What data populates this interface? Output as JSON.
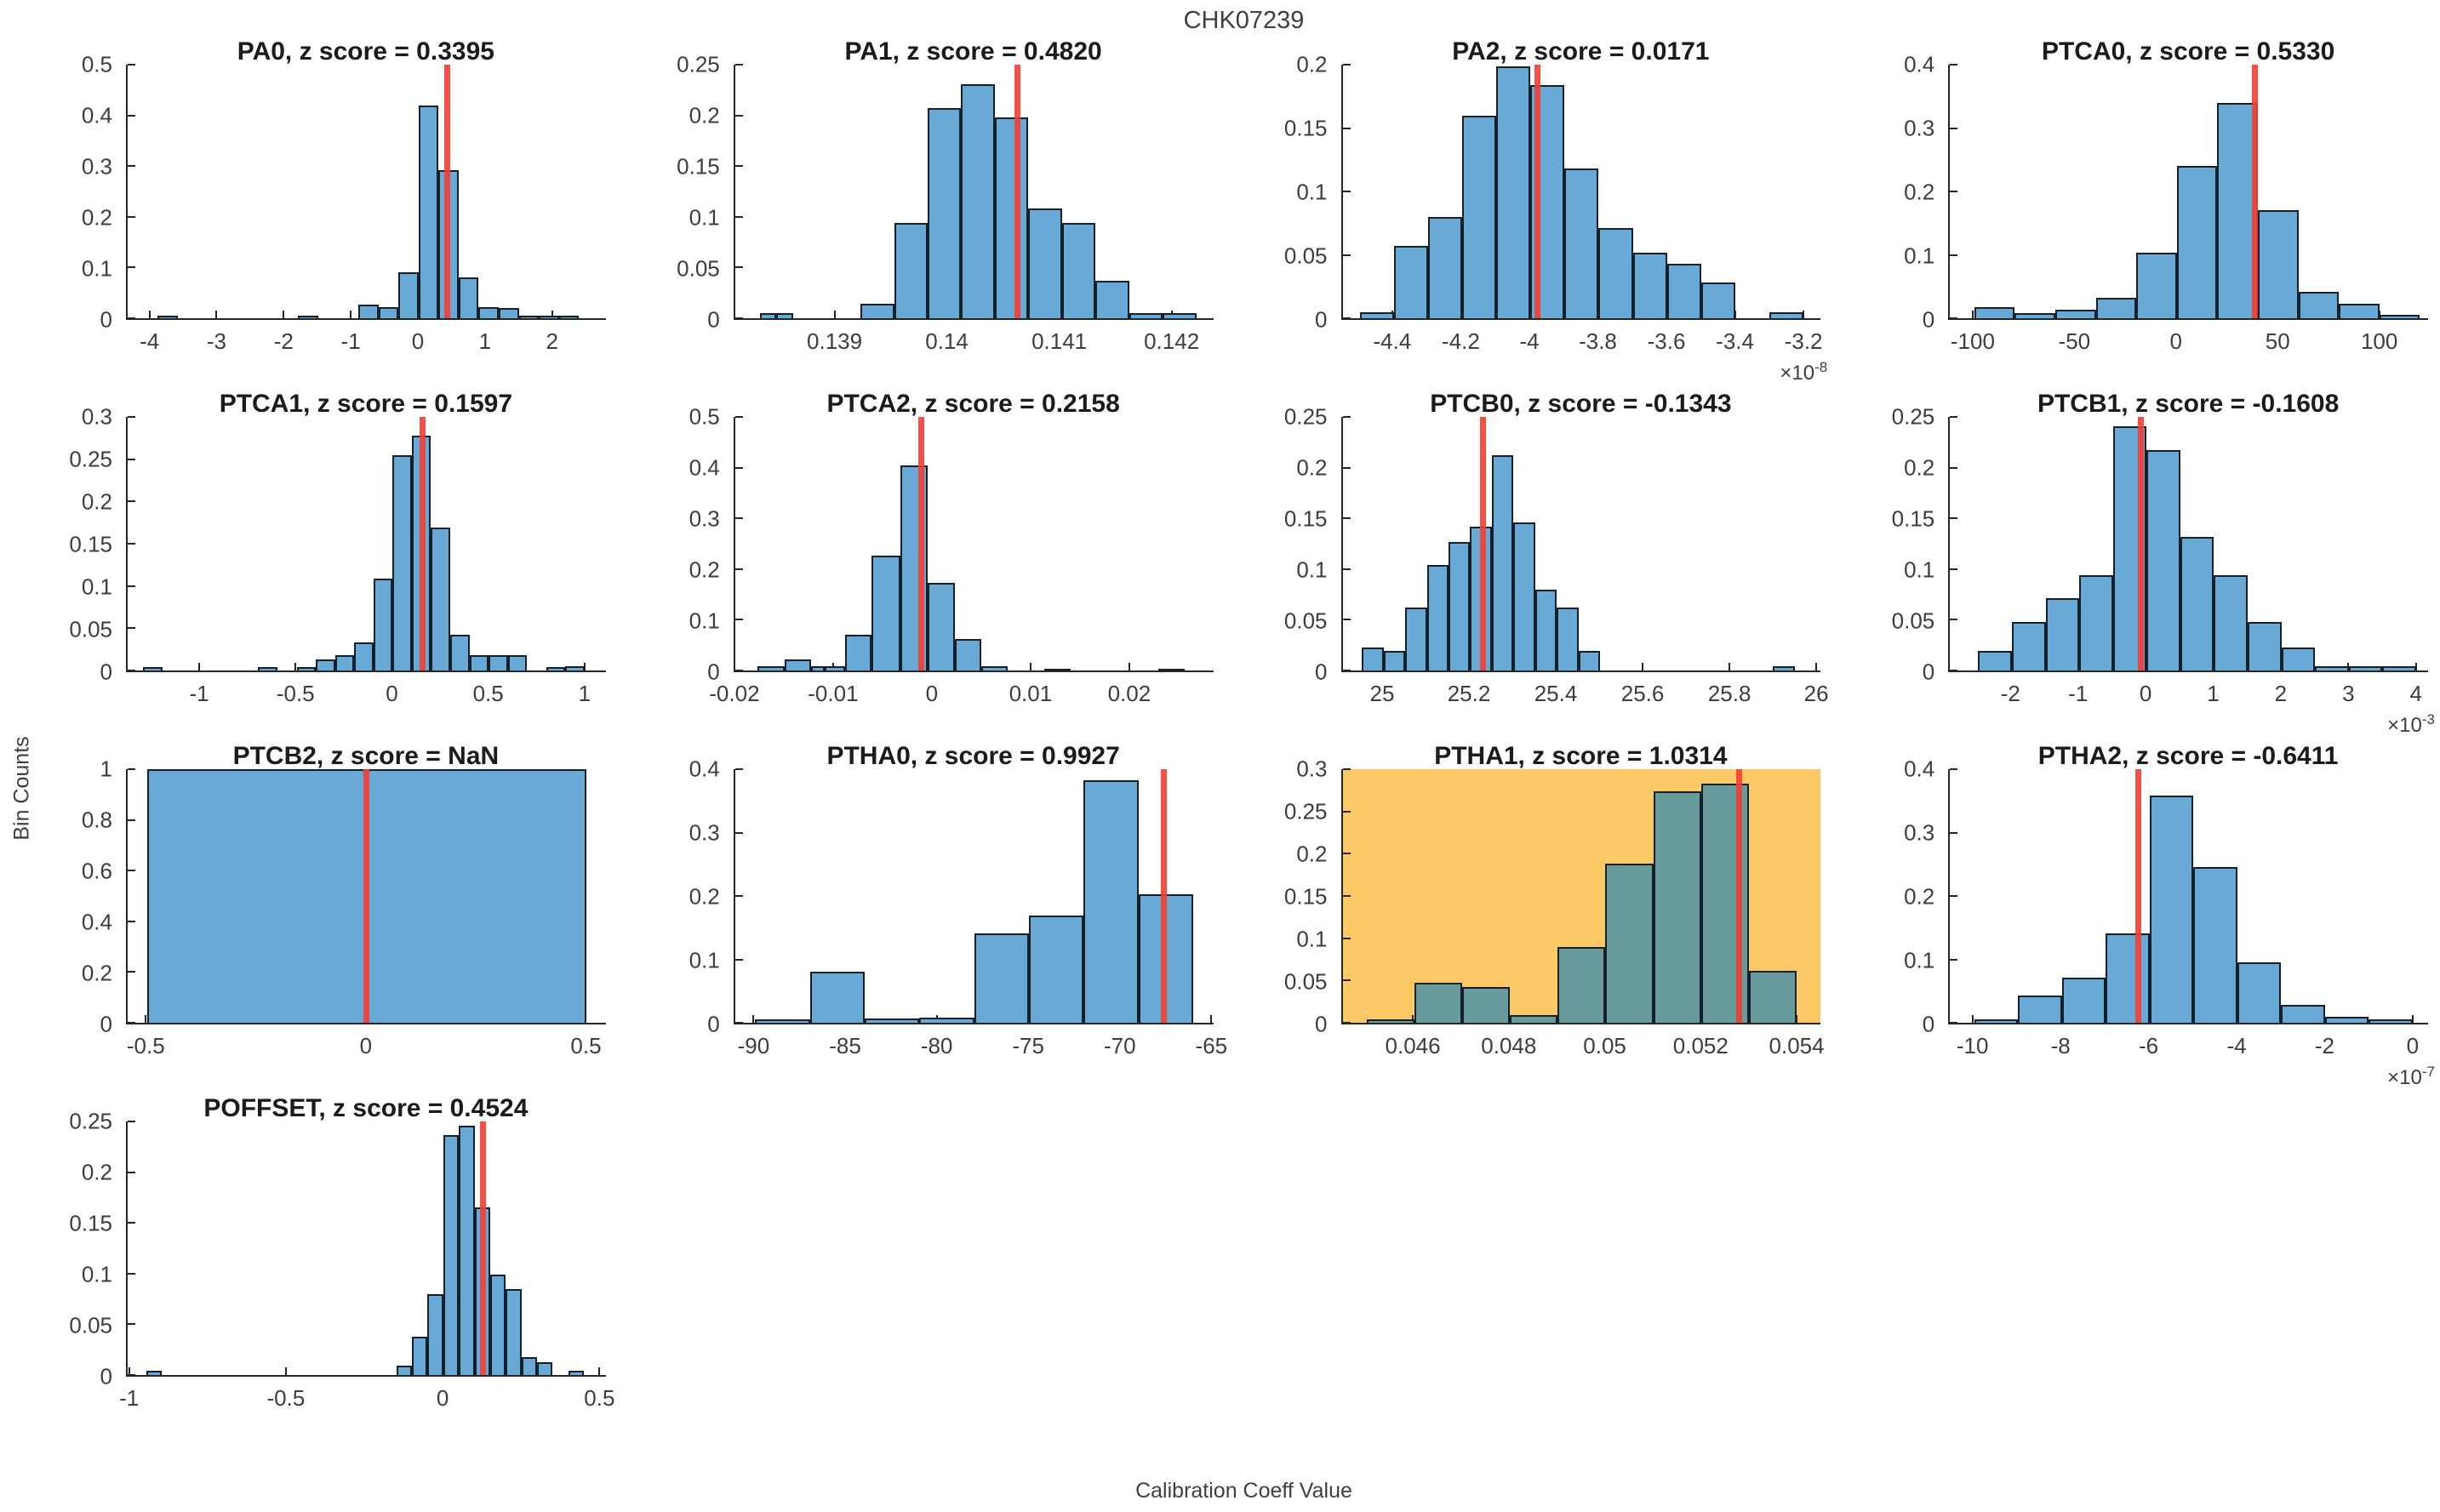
{
  "figure_title": "CHK07239",
  "ylabel": "Bin Counts",
  "xlabel": "Calibration Coeff Value",
  "exponent_prefix": "×10",
  "colors": {
    "bar": "#68A9D6",
    "bar_edge": "#16202a",
    "red_line": "#F23E34",
    "highlight_bg": "#FDC967",
    "bar_on_highlight": "#689B9C",
    "axis": "#262626",
    "tick_text": "#3d3d3d",
    "title_text": "#1b1b1b",
    "figure_text": "#3f3f3f"
  },
  "chart_data": [
    {
      "type": "bar",
      "param": "PA0",
      "z_score": "0.3395",
      "title": "PA0, z score = 0.3395",
      "xlim": [
        -4.35,
        2.8
      ],
      "ylim": [
        0,
        0.5
      ],
      "xticks": [
        -4,
        -3,
        -2,
        -1,
        0,
        1,
        2
      ],
      "yticks": [
        0,
        0.1,
        0.2,
        0.3,
        0.4,
        0.5
      ],
      "x_exponent": null,
      "highlighted": false,
      "red_line_x": 0.43,
      "bars": [
        [
          -3.9,
          -3.6,
          0.005
        ],
        [
          -1.8,
          -1.5,
          0.005
        ],
        [
          -0.9,
          -0.6,
          0.027
        ],
        [
          -0.6,
          -0.3,
          0.022
        ],
        [
          -0.3,
          0,
          0.09
        ],
        [
          0,
          0.3,
          0.42
        ],
        [
          0.3,
          0.6,
          0.292
        ],
        [
          0.6,
          0.9,
          0.08
        ],
        [
          0.9,
          1.2,
          0.022
        ],
        [
          1.2,
          1.5,
          0.02
        ],
        [
          1.5,
          1.8,
          0.005
        ],
        [
          1.8,
          2.1,
          0.005
        ],
        [
          2.1,
          2.4,
          0.005
        ]
      ]
    },
    {
      "type": "bar",
      "param": "PA1",
      "z_score": "0.4820",
      "title": "PA1, z score = 0.4820",
      "xlim": [
        0.1381,
        0.14237
      ],
      "ylim": [
        0,
        0.25
      ],
      "xticks": [
        0.139,
        0.14,
        0.141,
        0.142
      ],
      "yticks": [
        0,
        0.05,
        0.1,
        0.15,
        0.2,
        0.25
      ],
      "x_exponent": null,
      "highlighted": false,
      "red_line_x": 0.14062,
      "bars": [
        [
          0.13832,
          0.13847,
          0.005
        ],
        [
          0.13847,
          0.13862,
          0.005
        ],
        [
          0.13922,
          0.13952,
          0.014
        ],
        [
          0.13952,
          0.13982,
          0.094
        ],
        [
          0.13982,
          0.14012,
          0.207
        ],
        [
          0.14012,
          0.14042,
          0.231
        ],
        [
          0.14042,
          0.14072,
          0.198
        ],
        [
          0.14072,
          0.14102,
          0.108
        ],
        [
          0.14102,
          0.14132,
          0.094
        ],
        [
          0.14132,
          0.14162,
          0.037
        ],
        [
          0.14162,
          0.14192,
          0.005
        ],
        [
          0.14192,
          0.14222,
          0.005
        ]
      ]
    },
    {
      "type": "bar",
      "param": "PA2",
      "z_score": "0.0171",
      "title": "PA2, z score = 0.0171",
      "xlim": [
        -4.55,
        -3.15
      ],
      "ylim": [
        0,
        0.2
      ],
      "xticks": [
        -4.4,
        -4.2,
        -4,
        -3.8,
        -3.6,
        -3.4,
        -3.2
      ],
      "yticks": [
        0,
        0.05,
        0.1,
        0.15,
        0.2
      ],
      "x_exponent": "-8",
      "highlighted": false,
      "red_line_x": -3.98,
      "bars": [
        [
          -4.5,
          -4.4,
          0.005
        ],
        [
          -4.4,
          -4.3,
          0.057
        ],
        [
          -4.3,
          -4.2,
          0.08
        ],
        [
          -4.2,
          -4.1,
          0.16
        ],
        [
          -4.1,
          -4.0,
          0.199
        ],
        [
          -4.0,
          -3.9,
          0.184
        ],
        [
          -3.9,
          -3.8,
          0.118
        ],
        [
          -3.8,
          -3.7,
          0.071
        ],
        [
          -3.7,
          -3.6,
          0.052
        ],
        [
          -3.6,
          -3.5,
          0.043
        ],
        [
          -3.5,
          -3.4,
          0.028
        ],
        [
          -3.3,
          -3.2,
          0.005
        ]
      ]
    },
    {
      "type": "bar",
      "param": "PTCA0",
      "z_score": "0.5330",
      "title": "PTCA0, z score = 0.5330",
      "xlim": [
        -112,
        124
      ],
      "ylim": [
        0,
        0.4
      ],
      "xticks": [
        -100,
        -50,
        0,
        50,
        100
      ],
      "yticks": [
        0,
        0.1,
        0.2,
        0.3,
        0.4
      ],
      "x_exponent": null,
      "highlighted": false,
      "red_line_x": 38.5,
      "bars": [
        [
          -100,
          -80,
          0.018
        ],
        [
          -80,
          -60,
          0.008
        ],
        [
          -60,
          -40,
          0.013
        ],
        [
          -40,
          -20,
          0.032
        ],
        [
          -20,
          0,
          0.104
        ],
        [
          0,
          20,
          0.24
        ],
        [
          20,
          40,
          0.34
        ],
        [
          40,
          60,
          0.17
        ],
        [
          60,
          80,
          0.042
        ],
        [
          80,
          100,
          0.023
        ],
        [
          100,
          120,
          0.005
        ]
      ]
    },
    {
      "type": "bar",
      "param": "PTCA1",
      "z_score": "0.1597",
      "title": "PTCA1, z score = 0.1597",
      "xlim": [
        -1.38,
        1.11
      ],
      "ylim": [
        0,
        0.3
      ],
      "xticks": [
        -1,
        -0.5,
        0,
        0.5,
        1
      ],
      "yticks": [
        0,
        0.05,
        0.1,
        0.15,
        0.2,
        0.25,
        0.3
      ],
      "x_exponent": null,
      "highlighted": false,
      "red_line_x": 0.155,
      "bars": [
        [
          -1.3,
          -1.2,
          0.004
        ],
        [
          -0.7,
          -0.6,
          0.004
        ],
        [
          -0.5,
          -0.4,
          0.004
        ],
        [
          -0.4,
          -0.3,
          0.013
        ],
        [
          -0.3,
          -0.2,
          0.018
        ],
        [
          -0.2,
          -0.1,
          0.033
        ],
        [
          -0.1,
          0,
          0.109
        ],
        [
          0,
          0.1,
          0.255
        ],
        [
          0.1,
          0.2,
          0.278
        ],
        [
          0.2,
          0.3,
          0.169
        ],
        [
          0.3,
          0.4,
          0.042
        ],
        [
          0.4,
          0.5,
          0.018
        ],
        [
          0.5,
          0.6,
          0.018
        ],
        [
          0.6,
          0.7,
          0.018
        ],
        [
          0.8,
          0.9,
          0.004
        ],
        [
          0.9,
          1.0,
          0.005
        ]
      ]
    },
    {
      "type": "bar",
      "param": "PTCA2",
      "z_score": "0.2158",
      "title": "PTCA2, z score = 0.2158",
      "xlim": [
        -0.0201,
        0.0285
      ],
      "ylim": [
        0,
        0.5
      ],
      "xticks": [
        -0.02,
        -0.01,
        0,
        0.01,
        0.02
      ],
      "yticks": [
        0,
        0.1,
        0.2,
        0.3,
        0.4,
        0.5
      ],
      "x_exponent": null,
      "highlighted": false,
      "red_line_x": -0.0012,
      "bars": [
        [
          -0.0178,
          -0.0151,
          0.008
        ],
        [
          -0.0151,
          -0.0124,
          0.022
        ],
        [
          -0.0124,
          -0.011,
          0.008
        ],
        [
          -0.011,
          -0.0089,
          0.008
        ],
        [
          -0.0089,
          -0.0062,
          0.07
        ],
        [
          -0.0062,
          -0.0033,
          0.227
        ],
        [
          -0.0033,
          -0.0005,
          0.405
        ],
        [
          -0.0005,
          0.0022,
          0.173
        ],
        [
          0.0022,
          0.0049,
          0.062
        ],
        [
          0.0049,
          0.0076,
          0.008
        ],
        [
          0.0113,
          0.014,
          0.004
        ],
        [
          0.0229,
          0.0256,
          0.004
        ]
      ]
    },
    {
      "type": "bar",
      "param": "PTCB0",
      "z_score": "-0.1343",
      "title": "PTCB0, z score = -0.1343",
      "xlim": [
        24.905,
        26.01
      ],
      "ylim": [
        0,
        0.25
      ],
      "xticks": [
        25,
        25.2,
        25.4,
        25.6,
        25.8,
        26
      ],
      "yticks": [
        0,
        0.05,
        0.1,
        0.15,
        0.2,
        0.25
      ],
      "x_exponent": null,
      "highlighted": false,
      "red_line_x": 25.23,
      "bars": [
        [
          24.95,
          25,
          0.023
        ],
        [
          25,
          25.05,
          0.019
        ],
        [
          25.05,
          25.1,
          0.062
        ],
        [
          25.1,
          25.15,
          0.104
        ],
        [
          25.15,
          25.2,
          0.127
        ],
        [
          25.2,
          25.25,
          0.142
        ],
        [
          25.25,
          25.3,
          0.212
        ],
        [
          25.3,
          25.35,
          0.146
        ],
        [
          25.35,
          25.4,
          0.08
        ],
        [
          25.4,
          25.45,
          0.062
        ],
        [
          25.45,
          25.5,
          0.019
        ],
        [
          25.9,
          25.95,
          0.004
        ]
      ]
    },
    {
      "type": "bar",
      "param": "PTCB1",
      "z_score": "-0.1608",
      "title": "PTCB1, z score = -0.1608",
      "xlim": [
        -2.92,
        4.18
      ],
      "ylim": [
        0,
        0.25
      ],
      "xticks": [
        -2,
        -1,
        0,
        1,
        2,
        3,
        4
      ],
      "yticks": [
        0,
        0.05,
        0.1,
        0.15,
        0.2,
        0.25
      ],
      "x_exponent": "-3",
      "highlighted": false,
      "red_line_x": -0.08,
      "bars": [
        [
          -2.5,
          -2,
          0.019
        ],
        [
          -2,
          -1.5,
          0.048
        ],
        [
          -1.5,
          -1,
          0.071
        ],
        [
          -1,
          -0.5,
          0.094
        ],
        [
          -0.5,
          0,
          0.241
        ],
        [
          0,
          0.5,
          0.217
        ],
        [
          0.5,
          1,
          0.132
        ],
        [
          1,
          1.5,
          0.094
        ],
        [
          1.5,
          2,
          0.048
        ],
        [
          2,
          2.5,
          0.023
        ],
        [
          2.5,
          3,
          0.004
        ],
        [
          3,
          3.5,
          0.004
        ],
        [
          3.5,
          4,
          0.004
        ]
      ]
    },
    {
      "type": "bar",
      "param": "PTCB2",
      "z_score": "NaN",
      "title": "PTCB2, z score = NaN",
      "xlim": [
        -0.545,
        0.545
      ],
      "ylim": [
        0,
        1
      ],
      "xticks": [
        -0.5,
        0,
        0.5
      ],
      "yticks": [
        0,
        0.2,
        0.4,
        0.6,
        0.8,
        1
      ],
      "x_exponent": null,
      "highlighted": false,
      "red_line_x": 0,
      "bars": [
        [
          -0.5,
          0.5,
          1
        ]
      ]
    },
    {
      "type": "bar",
      "param": "PTHA0",
      "z_score": "0.9927",
      "title": "PTHA0, z score = 0.9927",
      "xlim": [
        -91.1,
        -64.9
      ],
      "ylim": [
        0,
        0.4
      ],
      "xticks": [
        -90,
        -85,
        -80,
        -75,
        -70,
        -65
      ],
      "yticks": [
        0,
        0.1,
        0.2,
        0.3,
        0.4
      ],
      "x_exponent": null,
      "highlighted": false,
      "red_line_x": -67.6,
      "bars": [
        [
          -90,
          -87,
          0.005
        ],
        [
          -87,
          -84,
          0.08
        ],
        [
          -84,
          -81,
          0.007
        ],
        [
          -81,
          -78,
          0.008
        ],
        [
          -78,
          -75,
          0.141
        ],
        [
          -75,
          -72,
          0.169
        ],
        [
          -72,
          -69,
          0.382
        ],
        [
          -69,
          -66,
          0.203
        ]
      ]
    },
    {
      "type": "bar",
      "param": "PTHA1",
      "z_score": "1.0314",
      "title": "PTHA1, z score = 1.0314",
      "xlim": [
        0.0445,
        0.0545
      ],
      "ylim": [
        0,
        0.3
      ],
      "xticks": [
        0.046,
        0.048,
        0.05,
        0.052,
        0.054
      ],
      "yticks": [
        0,
        0.05,
        0.1,
        0.15,
        0.2,
        0.25,
        0.3
      ],
      "x_exponent": null,
      "highlighted": true,
      "red_line_x": 0.0528,
      "bars": [
        [
          0.045,
          0.046,
          0.004
        ],
        [
          0.046,
          0.047,
          0.047
        ],
        [
          0.047,
          0.048,
          0.042
        ],
        [
          0.048,
          0.049,
          0.009
        ],
        [
          0.049,
          0.05,
          0.09
        ],
        [
          0.05,
          0.051,
          0.188
        ],
        [
          0.051,
          0.052,
          0.274
        ],
        [
          0.052,
          0.053,
          0.283
        ],
        [
          0.053,
          0.054,
          0.061
        ]
      ]
    },
    {
      "type": "bar",
      "param": "PTHA2",
      "z_score": "-0.6411",
      "title": "PTHA2, z score = -0.6411",
      "xlim": [
        -10.55,
        0.35
      ],
      "ylim": [
        0,
        0.4
      ],
      "xticks": [
        -10,
        -8,
        -6,
        -4,
        -2,
        0
      ],
      "yticks": [
        0,
        0.1,
        0.2,
        0.3,
        0.4
      ],
      "x_exponent": "-7",
      "highlighted": false,
      "red_line_x": -6.25,
      "bars": [
        [
          -10,
          -9,
          0.005
        ],
        [
          -9,
          -8,
          0.043
        ],
        [
          -8,
          -7,
          0.071
        ],
        [
          -7,
          -6,
          0.141
        ],
        [
          -6,
          -5,
          0.359
        ],
        [
          -5,
          -4,
          0.245
        ],
        [
          -4,
          -3,
          0.095
        ],
        [
          -3,
          -2,
          0.028
        ],
        [
          -2,
          -1,
          0.009
        ],
        [
          -1,
          0,
          0.005
        ]
      ]
    },
    {
      "type": "bar",
      "param": "POFFSET",
      "z_score": "0.4524",
      "title": "POFFSET, z score = 0.4524",
      "xlim": [
        -1.01,
        0.52
      ],
      "ylim": [
        0,
        0.25
      ],
      "xticks": [
        -1,
        -0.5,
        0,
        0.5
      ],
      "yticks": [
        0,
        0.05,
        0.1,
        0.15,
        0.2,
        0.25
      ],
      "x_exponent": null,
      "highlighted": false,
      "red_line_x": 0.128,
      "bars": [
        [
          -0.95,
          -0.9,
          0.004
        ],
        [
          -0.15,
          -0.1,
          0.009
        ],
        [
          -0.1,
          -0.05,
          0.038
        ],
        [
          -0.05,
          0,
          0.08
        ],
        [
          0,
          0.05,
          0.237
        ],
        [
          0.05,
          0.1,
          0.246
        ],
        [
          0.1,
          0.15,
          0.165
        ],
        [
          0.15,
          0.2,
          0.099
        ],
        [
          0.2,
          0.25,
          0.085
        ],
        [
          0.25,
          0.3,
          0.018
        ],
        [
          0.3,
          0.35,
          0.013
        ],
        [
          0.4,
          0.45,
          0.004
        ]
      ]
    }
  ]
}
